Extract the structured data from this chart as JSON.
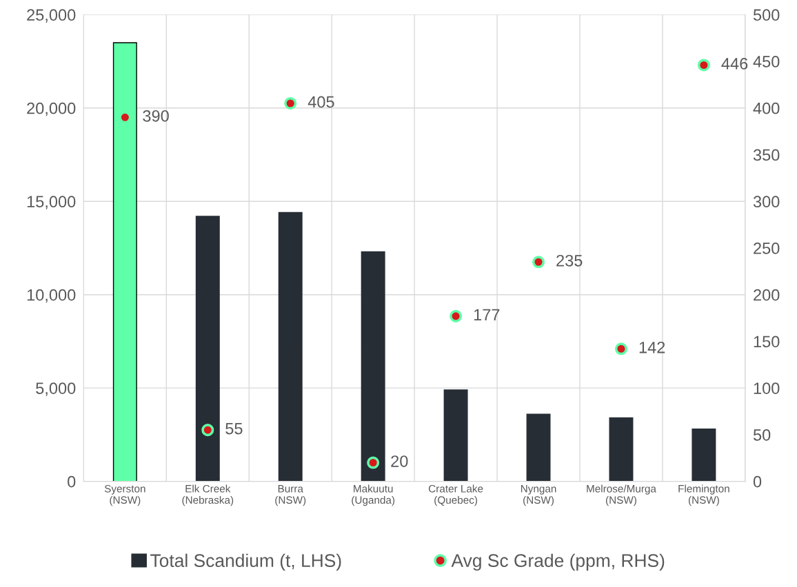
{
  "chart_data": {
    "type": "bar",
    "categories": [
      "Syerston\n(NSW)",
      "Elk Creek\n(Nebraska)",
      "Burra\n(NSW)",
      "Makuutu\n(Uganda)",
      "Crater Lake\n(Quebec)",
      "Nyngan\n(NSW)",
      "Melrose/Murga\n(NSW)",
      "Flemington\n(NSW)"
    ],
    "series": [
      {
        "name": "Total Scandium (t, LHS)",
        "color": "#272d35",
        "colors": [
          "#5effa8",
          "#272d35",
          "#272d35",
          "#272d35",
          "#272d35",
          "#272d35",
          "#272d35",
          "#272d35"
        ],
        "values": [
          23500,
          14200,
          14400,
          12300,
          4900,
          3600,
          3400,
          2800
        ]
      },
      {
        "name": "Avg Sc Grade (ppm, RHS)",
        "type": "scatter",
        "axis": "y2",
        "color": "#d7191c",
        "marker": "circle",
        "values": [
          390,
          55,
          405,
          20,
          177,
          235,
          142,
          446
        ],
        "value_labels": [
          "390",
          "55",
          "405",
          "20",
          "177",
          "235",
          "142",
          "446"
        ]
      }
    ],
    "ylim": [
      0,
      25000
    ],
    "yticks": [
      {
        "value": 0,
        "label": "0"
      },
      {
        "value": 5000,
        "label": "5,000"
      },
      {
        "value": 10000,
        "label": "10,000"
      },
      {
        "value": 15000,
        "label": "15,000"
      },
      {
        "value": 20000,
        "label": "20,000"
      },
      {
        "value": 25000,
        "label": "25,000"
      }
    ],
    "y2lim": [
      0,
      500
    ],
    "y2ticks": [
      0,
      50,
      100,
      150,
      200,
      250,
      300,
      350,
      400,
      450,
      500
    ],
    "grid": true,
    "legend": "bottom"
  }
}
